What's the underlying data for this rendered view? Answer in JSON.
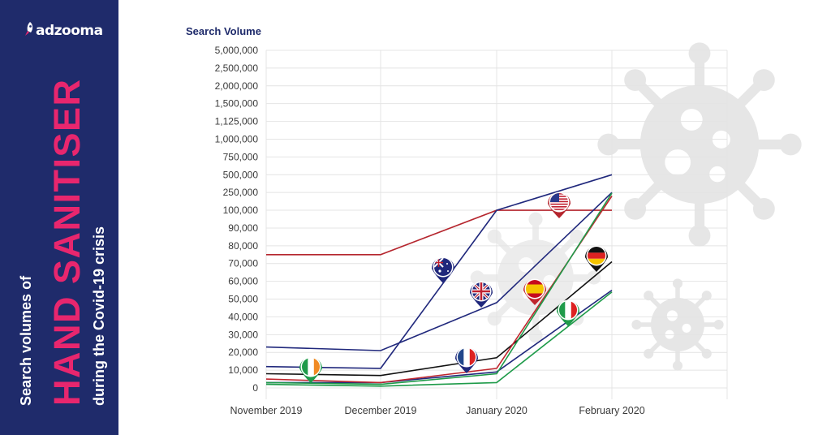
{
  "brand": {
    "logo_text": "adzooma"
  },
  "sidebar": {
    "line1": "Search volumes of",
    "line2": "HAND SANITISER",
    "line3": "during the Covid-19 crisis"
  },
  "colors": {
    "sidebar_bg": "#1f2b6b",
    "accent_pink": "#e8266e",
    "virus": "#e6e6e6"
  },
  "chart_data": {
    "type": "line",
    "ylabel": "Search Volume",
    "categories": [
      "November 2019",
      "December 2019",
      "January 2020",
      "February 2020"
    ],
    "y_ticks": [
      "0",
      "10,000",
      "20,000",
      "30,000",
      "40,000",
      "50,000",
      "60,000",
      "70,000",
      "80,000",
      "90,000",
      "100,000",
      "250,000",
      "500,000",
      "750,000",
      "1,000,000",
      "1,125,000",
      "1,500,000",
      "2,000,000",
      "2,500,000",
      "5,000,000"
    ],
    "y_scale": "piecewise (labels evenly spaced)",
    "grid": true,
    "series": [
      {
        "name": "United States",
        "color": "#b5262e",
        "values": [
          75000,
          75000,
          100000,
          100000
        ]
      },
      {
        "name": "Australia",
        "color": "#20287c",
        "values": [
          12000,
          11000,
          100000,
          500000
        ]
      },
      {
        "name": "United Kingdom",
        "color": "#20287c",
        "values": [
          23000,
          21000,
          48000,
          250000
        ]
      },
      {
        "name": "Germany",
        "color": "#111111",
        "values": [
          8000,
          7000,
          17000,
          71000
        ]
      },
      {
        "name": "France",
        "color": "#20287c",
        "values": [
          3000,
          3000,
          9000,
          55000
        ]
      },
      {
        "name": "Spain",
        "color": "#c0262e",
        "values": [
          5000,
          3000,
          11000,
          220000
        ]
      },
      {
        "name": "Italy",
        "color": "#1f9b4a",
        "values": [
          2000,
          1000,
          3000,
          54000
        ]
      },
      {
        "name": "Ireland",
        "color": "#1f9b4a",
        "values": [
          3000,
          2000,
          8000,
          245000
        ]
      }
    ]
  }
}
